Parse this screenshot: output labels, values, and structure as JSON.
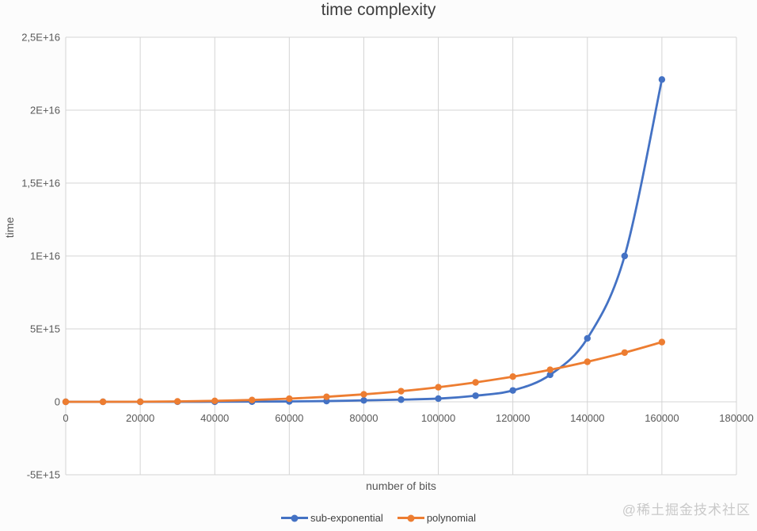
{
  "title": "time complexity",
  "watermark": "@稀土掘金技术社区",
  "colors": {
    "sub_exponential": "#4472C4",
    "polynomial": "#ED7D31",
    "gridline": "#d4d4d4",
    "plot_background": "#ffffff",
    "tick_text": "#595959",
    "title_text": "#3d3d3d",
    "watermark_text": "#c9c9c9"
  },
  "chart_data": {
    "type": "line",
    "title": "time complexity",
    "xlabel": "number of bits",
    "ylabel": "time",
    "xlim": [
      0,
      180000
    ],
    "ylim": [
      -5000000000000000.0,
      2.5e+16
    ],
    "grid": true,
    "smooth": true,
    "marker": "circle",
    "legend_position": "bottom",
    "x": [
      0,
      10000,
      20000,
      30000,
      40000,
      50000,
      60000,
      70000,
      80000,
      90000,
      100000,
      110000,
      120000,
      130000,
      140000,
      150000,
      160000
    ],
    "series": [
      {
        "name": "sub-exponential",
        "color": "#4472C4",
        "values": [
          10000000000.0,
          100000000000.0,
          500000000000.0,
          2000000000000.0,
          5000000000000.0,
          12000000000000.0,
          25000000000000.0,
          50000000000000.0,
          100000000000000.0,
          150000000000000.0,
          220000000000000.0,
          420000000000000.0,
          780000000000000.0,
          1850000000000000.0,
          4350000000000000.0,
          1e+16,
          2.21e+16
        ]
      },
      {
        "name": "polynomial",
        "color": "#ED7D31",
        "values": [
          0,
          1000000000000.0,
          8000000000000.0,
          27000000000000.0,
          64000000000000.0,
          125000000000000.0,
          216000000000000.0,
          343000000000000.0,
          512000000000000.0,
          729000000000000.0,
          1000000000000000.0,
          1331000000000000.0,
          1728000000000000.0,
          2197000000000000.0,
          2744000000000000.0,
          3375000000000000.0,
          4096000000000000.0
        ]
      }
    ],
    "xticks": {
      "values": [
        0,
        20000,
        40000,
        60000,
        80000,
        100000,
        120000,
        140000,
        160000,
        180000
      ],
      "labels": [
        "0",
        "20000",
        "40000",
        "60000",
        "80000",
        "100000",
        "120000",
        "140000",
        "160000",
        "180000"
      ]
    },
    "yticks": {
      "values": [
        2.5e+16,
        2e+16,
        1.5e+16,
        1e+16,
        5000000000000000.0,
        0,
        -5000000000000000.0
      ],
      "labels": [
        "2,5E+16",
        "2E+16",
        "1,5E+16",
        "1E+16",
        "5E+15",
        "0",
        "-5E+15"
      ]
    }
  },
  "legend": {
    "items": [
      {
        "label": "sub-exponential",
        "color": "#4472C4"
      },
      {
        "label": "polynomial",
        "color": "#ED7D31"
      }
    ]
  }
}
